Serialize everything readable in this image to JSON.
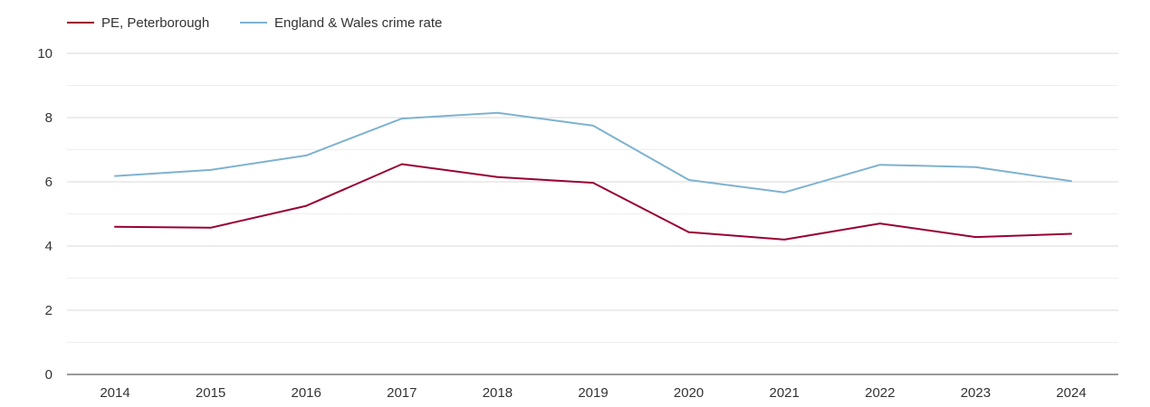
{
  "chart_data": {
    "type": "line",
    "title": "",
    "xlabel": "",
    "ylabel": "",
    "x": [
      "2014",
      "2015",
      "2016",
      "2017",
      "2018",
      "2019",
      "2020",
      "2021",
      "2022",
      "2023",
      "2024"
    ],
    "ylim": [
      0,
      10
    ],
    "yticks": [
      "0",
      "2",
      "4",
      "6",
      "8",
      "10"
    ],
    "grid": true,
    "legend_position": "top-left",
    "series": [
      {
        "name": "PE, Peterborough",
        "color": "#990033",
        "values": [
          4.6,
          4.57,
          5.25,
          6.55,
          6.15,
          5.97,
          4.43,
          4.2,
          4.7,
          4.28,
          4.38
        ]
      },
      {
        "name": "England & Wales crime rate",
        "color": "#7eb2d0",
        "values": [
          6.18,
          6.37,
          6.82,
          7.97,
          8.15,
          7.75,
          6.06,
          5.67,
          6.53,
          6.46,
          6.02
        ]
      }
    ]
  }
}
